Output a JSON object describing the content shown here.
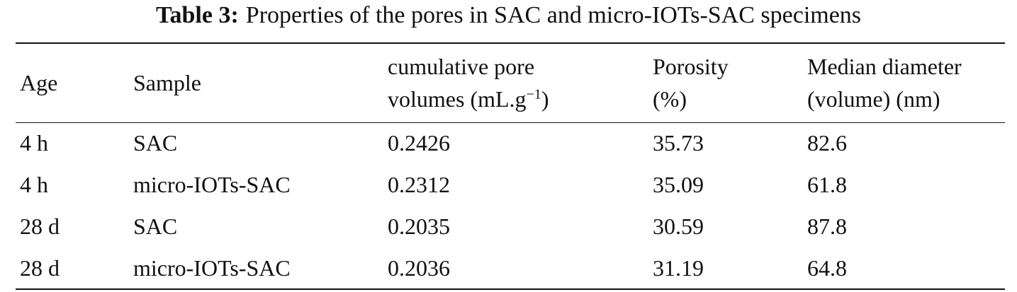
{
  "caption": {
    "label": "Table 3:",
    "text": "Properties of the pores in SAC and micro-IOTs-SAC specimens"
  },
  "table": {
    "header": [
      {
        "lines": [
          "Age"
        ]
      },
      {
        "lines": [
          "Sample"
        ]
      },
      {
        "lines": [
          "cumulative pore",
          "volumes (mL.g"
        ],
        "sup": "−1",
        "close": ")"
      },
      {
        "lines": [
          "Porosity",
          "(%)"
        ]
      },
      {
        "lines": [
          "Median diameter",
          "(volume) (nm)"
        ]
      }
    ],
    "rows": [
      [
        "4 h",
        "SAC",
        "0.2426",
        "35.73",
        "82.6"
      ],
      [
        "4 h",
        "micro-IOTs-SAC",
        "0.2312",
        "35.09",
        "61.8"
      ],
      [
        "28 d",
        "SAC",
        "0.2035",
        "30.59",
        "87.8"
      ],
      [
        "28 d",
        "micro-IOTs-SAC",
        "0.2036",
        "31.19",
        "64.8"
      ]
    ]
  }
}
